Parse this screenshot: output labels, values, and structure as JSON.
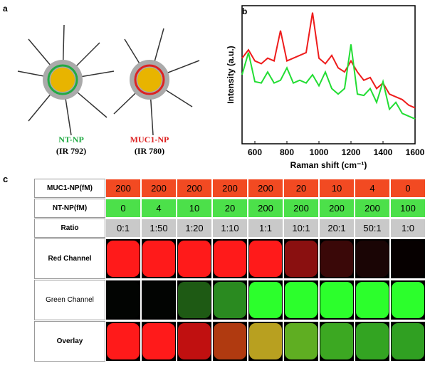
{
  "panel_a": {
    "label": "a",
    "particles": [
      {
        "name": "NT-NP",
        "code": "(IR 792)",
        "color": "#22aa44"
      },
      {
        "name": "MUC1-NP",
        "code": "(IR 780)",
        "color": "#dd2222"
      }
    ]
  },
  "panel_b": {
    "label": "b",
    "chart_data": {
      "type": "line",
      "x_label": "Raman shift (cm⁻¹)",
      "y_label": "Intensity (a.u.)",
      "x": [
        520,
        560,
        600,
        640,
        680,
        720,
        760,
        800,
        840,
        880,
        920,
        960,
        1000,
        1040,
        1080,
        1120,
        1160,
        1200,
        1240,
        1280,
        1320,
        1360,
        1400,
        1440,
        1480,
        1520,
        1560,
        1600
      ],
      "series": [
        {
          "color": "#ee1c1c",
          "values": [
            62,
            68,
            60,
            58,
            62,
            60,
            82,
            60,
            62,
            64,
            66,
            95,
            62,
            58,
            64,
            55,
            52,
            60,
            52,
            46,
            48,
            40,
            44,
            36,
            34,
            32,
            28,
            26
          ]
        },
        {
          "color": "#22dd33",
          "values": [
            50,
            66,
            45,
            44,
            52,
            44,
            46,
            55,
            44,
            46,
            44,
            50,
            42,
            52,
            40,
            36,
            40,
            72,
            36,
            35,
            40,
            30,
            45,
            25,
            30,
            22,
            20,
            18
          ]
        }
      ],
      "xlim": [
        520,
        1600
      ],
      "ylim": [
        0,
        100
      ],
      "xticks": [
        600,
        800,
        1000,
        1200,
        1400,
        1600
      ]
    }
  },
  "panel_c": {
    "label": "c",
    "header_rows": [
      {
        "label": "MUC1-NP(fM)",
        "color": "#f24a22",
        "cells": [
          200,
          200,
          200,
          200,
          200,
          20,
          10,
          4,
          0
        ]
      },
      {
        "label": "NT-NP(fM)",
        "color": "#4ce04a",
        "cells": [
          0,
          4,
          10,
          20,
          200,
          200,
          200,
          200,
          100
        ]
      },
      {
        "label": "Ratio",
        "color": "#c9c9c9",
        "cells": [
          "0:1",
          "1:50",
          "1:20",
          "1:10",
          "1:1",
          "10:1",
          "20:1",
          "50:1",
          "1:0"
        ]
      }
    ],
    "image_rows": [
      {
        "label": "Red Channel",
        "colors": [
          "#ff1a1a",
          "#ff1a1a",
          "#ff1a1a",
          "#ff1a1a",
          "#ff1a1a",
          "#8a1010",
          "#3a0808",
          "#1a0505",
          "#060000"
        ]
      },
      {
        "label": "Green Channel",
        "colors": [
          "#020402",
          "#020402",
          "#1e5a14",
          "#2a8a20",
          "#2cff2c",
          "#2cff2c",
          "#2cff2c",
          "#2cff2c",
          "#2cff2c"
        ]
      },
      {
        "label": "Overlay",
        "colors": [
          "#ff1a1a",
          "#ff1a1a",
          "#c01010",
          "#b03a10",
          "#b8a020",
          "#5fae22",
          "#3ca822",
          "#33a422",
          "#30a022"
        ]
      }
    ]
  }
}
